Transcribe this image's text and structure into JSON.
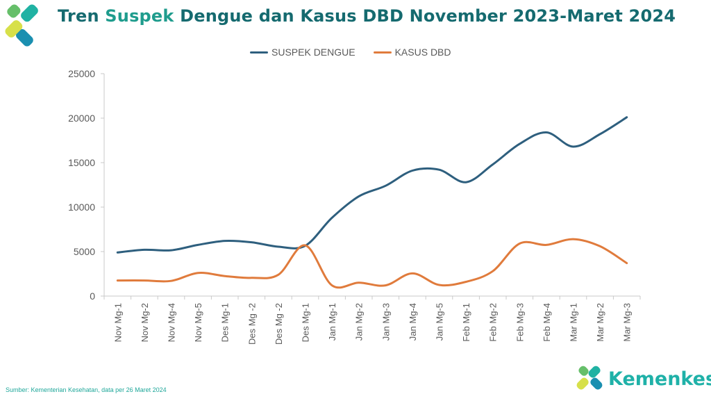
{
  "header": {
    "title_part1": "Tren ",
    "title_highlight": "Suspek",
    "title_part2": " Dengue dan Kasus DBD November 2023-Maret 2024"
  },
  "footer": {
    "source": "Sumber: Kementerian Kesehatan, data per 26 Maret 2024",
    "brand": "Kemenkes"
  },
  "colors": {
    "suspek": "#2e5f7e",
    "kasus": "#e07b3c",
    "title": "#156a6f",
    "brand": "#1fb1a8"
  },
  "chart_data": {
    "type": "line",
    "title": "Tren Suspek Dengue dan Kasus DBD November 2023-Maret 2024",
    "xlabel": "",
    "ylabel": "",
    "ylim": [
      0,
      25000
    ],
    "yticks": [
      0,
      5000,
      10000,
      15000,
      20000,
      25000
    ],
    "grid": false,
    "legend_position": "top",
    "categories": [
      "Nov Mg-1",
      "Nov Mg-2",
      "Nov Mg-4",
      "Nov Mg-5",
      "Des Mg-1",
      "Des Mg -2",
      "Des Mg -2",
      "Des Mg-1",
      "Jan Mg-1",
      "Jan Mg-2",
      "Jan Mg-3",
      "Jan Mg-4",
      "Jan Mg-5",
      "Feb Mg-1",
      "Feb Mg-2",
      "Feb Mg-3",
      "Feb Mg-4",
      "Mar Mg-1",
      "Mar Mg-2",
      "Mar Mg-3"
    ],
    "series": [
      {
        "name": "SUSPEK DENGUE",
        "color": "#2e5f7e",
        "values": [
          4900,
          5200,
          5150,
          5750,
          6200,
          6050,
          5550,
          5650,
          8800,
          11200,
          12400,
          14100,
          14200,
          12800,
          14800,
          17100,
          18400,
          16800,
          18200,
          20100
        ]
      },
      {
        "name": "KASUS DBD",
        "color": "#e07b3c",
        "values": [
          1750,
          1750,
          1700,
          2600,
          2250,
          2050,
          2400,
          5700,
          1200,
          1500,
          1200,
          2550,
          1250,
          1600,
          2800,
          5900,
          5750,
          6400,
          5600,
          3700
        ]
      }
    ]
  }
}
